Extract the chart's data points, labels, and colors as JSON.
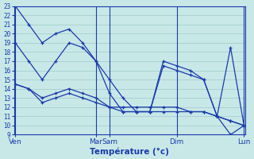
{
  "background_color": "#c8e8e8",
  "grid_color": "#a0c8c8",
  "line_color": "#1a3aaa",
  "ylim": [
    9,
    23
  ],
  "yticks": [
    9,
    10,
    11,
    12,
    13,
    14,
    15,
    16,
    17,
    18,
    19,
    20,
    21,
    22,
    23
  ],
  "xlabel": "Température (°c)",
  "day_tick_positions": [
    0,
    12,
    14,
    24,
    34
  ],
  "day_labels": [
    "Ven",
    "Mar",
    "Sam",
    "Dim",
    "Lun"
  ],
  "xlim": [
    -0.2,
    34.2
  ],
  "series": [
    {
      "x": [
        0,
        2,
        4,
        6,
        8,
        10,
        12,
        14,
        16,
        18,
        20,
        22,
        24,
        26,
        28,
        30,
        32,
        34
      ],
      "y": [
        23,
        21,
        19,
        20,
        20.5,
        19,
        17,
        15,
        13,
        11.5,
        11.5,
        17,
        16.5,
        16,
        15,
        11,
        9,
        10
      ]
    },
    {
      "x": [
        0,
        2,
        4,
        6,
        8,
        10,
        12,
        14,
        16,
        18,
        20,
        22,
        24,
        26,
        28,
        30,
        32,
        34
      ],
      "y": [
        19,
        17,
        15,
        17,
        19,
        18.5,
        17,
        13.5,
        11.5,
        11.5,
        11.5,
        16.5,
        16,
        15.5,
        15,
        11,
        18.5,
        10
      ]
    },
    {
      "x": [
        0,
        2,
        4,
        6,
        8,
        10,
        12,
        14,
        16,
        18,
        20,
        22,
        24,
        26,
        28,
        30,
        32,
        34
      ],
      "y": [
        14.5,
        14,
        13,
        13.5,
        14,
        13.5,
        13,
        12,
        11.5,
        11.5,
        11.5,
        11.5,
        11.5,
        11.5,
        11.5,
        11,
        10.5,
        10
      ]
    },
    {
      "x": [
        0,
        2,
        4,
        6,
        8,
        10,
        12,
        14,
        16,
        18,
        20,
        22,
        24,
        26,
        28,
        30,
        32,
        34
      ],
      "y": [
        14.5,
        14,
        12.5,
        13,
        13.5,
        13,
        12.5,
        12,
        12,
        12,
        12,
        12,
        12,
        11.5,
        11.5,
        11,
        10.5,
        10
      ]
    }
  ]
}
